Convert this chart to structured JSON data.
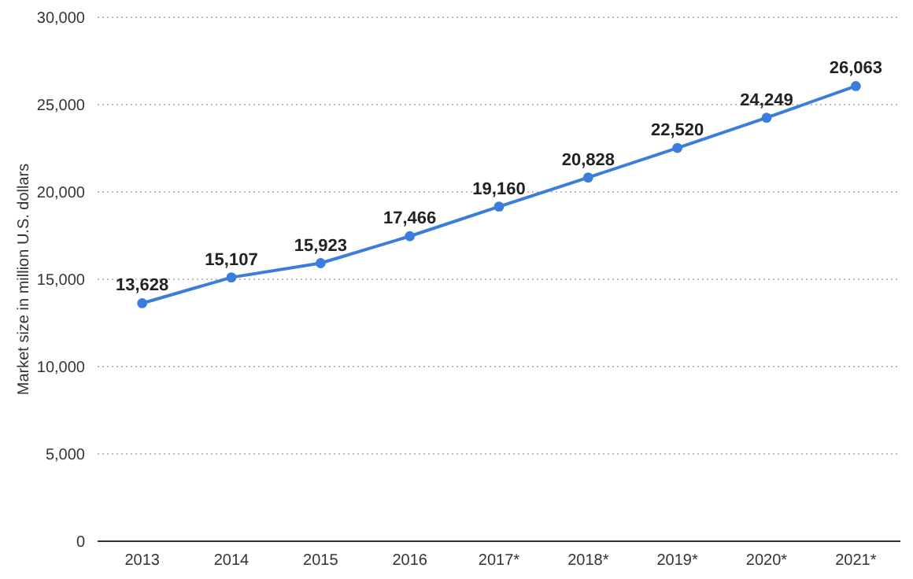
{
  "chart_data": {
    "type": "line",
    "ylabel": "Market size in million U.S. dollars",
    "categories": [
      "2013",
      "2014",
      "2015",
      "2016",
      "2017*",
      "2018*",
      "2019*",
      "2020*",
      "2021*"
    ],
    "series": [
      {
        "color": "#3b7ddd",
        "values": [
          13628,
          15107,
          15923,
          17466,
          19160,
          20828,
          22520,
          24249,
          26063
        ],
        "value_labels": [
          "13,628",
          "15,107",
          "15,923",
          "17,466",
          "19,160",
          "20,828",
          "22,520",
          "24,249",
          "26,063"
        ]
      }
    ],
    "ylim": [
      0,
      30000
    ],
    "yticks": [
      0,
      {
        "value": 5000,
        "label": "5,000"
      },
      {
        "value": 10000,
        "label": "10,000"
      },
      {
        "value": 15000,
        "label": "15,000"
      },
      {
        "value": 20000,
        "label": "20,000"
      },
      {
        "value": 25000,
        "label": "25,000"
      },
      {
        "value": 30000,
        "label": "30,000"
      }
    ],
    "grid": "y",
    "marker": "circle",
    "line_style": "solid"
  }
}
